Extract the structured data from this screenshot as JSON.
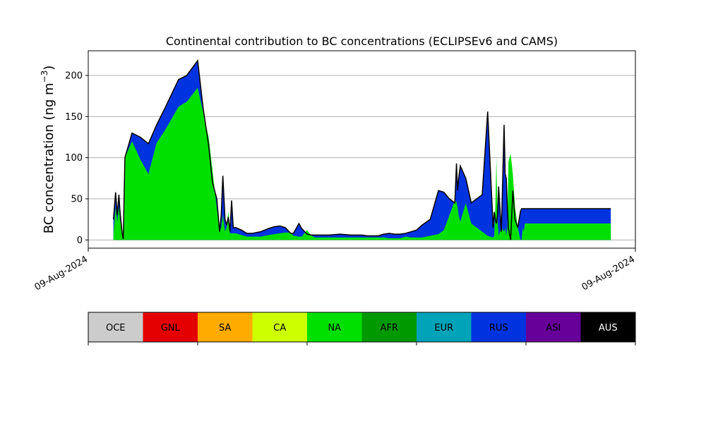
{
  "chart_data": {
    "type": "area",
    "title": "Continental contribution to BC concentrations (ECLIPSEv6 and CAMS)",
    "ylabel_main": "BC concentration (ng m",
    "ylabel_exp": "−3",
    "ylabel_close": ")",
    "xlabel": "",
    "ylim": [
      -10,
      230
    ],
    "xlim": [
      0,
      1
    ],
    "yticks": [
      0,
      50,
      100,
      150,
      200
    ],
    "ytick_labels": [
      "0",
      "50",
      "100",
      "150",
      "200"
    ],
    "xtick_labels": [
      "09-Aug-2024",
      "09-Aug-2024"
    ],
    "grid": "y",
    "x": [
      0.046,
      0.05,
      0.053,
      0.056,
      0.058,
      0.062,
      0.064,
      0.067,
      0.08,
      0.095,
      0.11,
      0.125,
      0.14,
      0.165,
      0.18,
      0.2,
      0.21,
      0.22,
      0.227,
      0.235,
      0.24,
      0.243,
      0.246,
      0.25,
      0.253,
      0.256,
      0.259,
      0.262,
      0.265,
      0.268,
      0.27,
      0.28,
      0.29,
      0.3,
      0.315,
      0.33,
      0.34,
      0.35,
      0.36,
      0.37,
      0.375,
      0.385,
      0.39,
      0.4,
      0.408,
      0.415,
      0.425,
      0.44,
      0.46,
      0.48,
      0.5,
      0.51,
      0.52,
      0.53,
      0.54,
      0.55,
      0.56,
      0.57,
      0.58,
      0.59,
      0.6,
      0.61,
      0.625,
      0.64,
      0.65,
      0.66,
      0.67,
      0.673,
      0.675,
      0.677,
      0.68,
      0.69,
      0.7,
      0.72,
      0.73,
      0.74,
      0.742,
      0.744,
      0.746,
      0.748,
      0.75,
      0.755,
      0.76,
      0.762,
      0.764,
      0.766,
      0.768,
      0.772,
      0.776,
      0.78,
      0.785,
      0.79,
      0.792,
      0.794,
      0.796,
      0.798,
      0.8,
      0.82,
      0.86,
      0.9,
      0.955
    ],
    "series": [
      {
        "name": "NA",
        "values": [
          5,
          40,
          22,
          40,
          25,
          10,
          5,
          100,
          120,
          98,
          80,
          118,
          133,
          162,
          168,
          185,
          155,
          125,
          85,
          38,
          10,
          15,
          30,
          10,
          15,
          35,
          8,
          8,
          8,
          8,
          8,
          6,
          4,
          4,
          4,
          6,
          7,
          8,
          9,
          9,
          5,
          4,
          4,
          12,
          5,
          3,
          3,
          3,
          3,
          3,
          3,
          3,
          3,
          3,
          3,
          2,
          2,
          2,
          4,
          3,
          3,
          3,
          5,
          7,
          12,
          30,
          48,
          46,
          40,
          30,
          22,
          45,
          20,
          10,
          5,
          3,
          5,
          40,
          100,
          25,
          5,
          15,
          10,
          15,
          5,
          15,
          95,
          105,
          80,
          40,
          15,
          0,
          0,
          15,
          10,
          20,
          20,
          20,
          20,
          20,
          20
        ]
      },
      {
        "name": "RUS",
        "values": [
          25,
          58,
          30,
          55,
          35,
          8,
          1,
          100,
          130,
          125,
          117,
          140,
          160,
          195,
          200,
          218,
          160,
          115,
          70,
          50,
          10,
          30,
          78,
          25,
          18,
          28,
          10,
          48,
          15,
          15,
          15,
          12,
          8,
          8,
          10,
          14,
          16,
          17,
          15,
          8,
          8,
          20,
          14,
          7,
          6,
          6,
          6,
          6,
          7,
          6,
          6,
          5,
          5,
          5,
          7,
          8,
          7,
          7,
          8,
          10,
          12,
          18,
          25,
          60,
          58,
          50,
          45,
          93,
          60,
          75,
          90,
          75,
          45,
          55,
          156,
          15,
          34,
          25,
          20,
          30,
          65,
          10,
          140,
          80,
          75,
          40,
          14,
          0,
          60,
          25,
          15,
          35,
          38,
          38,
          38,
          38,
          38,
          38,
          38,
          38,
          38
        ]
      }
    ],
    "legend": {
      "placement": "bottom",
      "entries": [
        {
          "label": "OCE",
          "color": "#cccccc",
          "text": "#000000"
        },
        {
          "label": "GNL",
          "color": "#e50000",
          "text": "#000000"
        },
        {
          "label": "SA",
          "color": "#ffab00",
          "text": "#000000"
        },
        {
          "label": "CA",
          "color": "#ccff00",
          "text": "#000000"
        },
        {
          "label": "NA",
          "color": "#00e000",
          "text": "#000000"
        },
        {
          "label": "AFR",
          "color": "#009900",
          "text": "#000000"
        },
        {
          "label": "EUR",
          "color": "#00a3b8",
          "text": "#000000"
        },
        {
          "label": "RUS",
          "color": "#0033e0",
          "text": "#000000"
        },
        {
          "label": "ASI",
          "color": "#660099",
          "text": "#000000"
        },
        {
          "label": "AUS",
          "color": "#000000",
          "text": "#ffffff"
        }
      ]
    }
  }
}
